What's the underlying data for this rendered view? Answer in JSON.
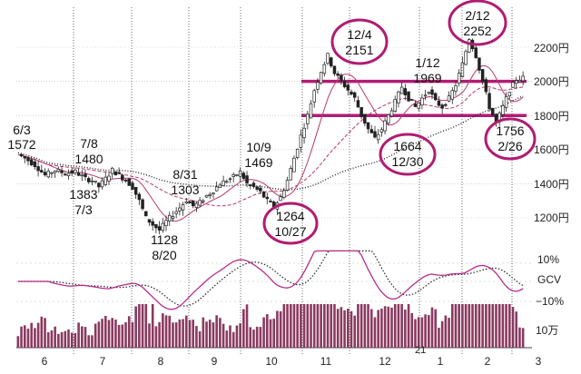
{
  "chart_data": {
    "type": "candlestick",
    "x_months": [
      "6",
      "7",
      "8",
      "9",
      "10",
      "11",
      "12",
      "1",
      "2",
      "3"
    ],
    "x_year_marker": "21",
    "price_axis": {
      "ticks": [
        "2200円",
        "2000円",
        "1800円",
        "1600円",
        "1400円",
        "1200円"
      ],
      "values": [
        2200,
        2000,
        1800,
        1600,
        1400,
        1200
      ],
      "ylim": [
        1100,
        2300
      ]
    },
    "gcv_axis": {
      "ticks": [
        "10%",
        "GCV",
        "−10%"
      ],
      "values": [
        10,
        0,
        -10
      ]
    },
    "volume_axis": {
      "ticks": [
        "10万"
      ]
    },
    "horizontal_lines": [
      2000,
      1800
    ],
    "annotations": [
      {
        "lines": [
          "6/3",
          "1572"
        ],
        "circled": false
      },
      {
        "lines": [
          "7/8",
          "1480"
        ],
        "circled": false
      },
      {
        "lines": [
          "1383",
          "7/3"
        ],
        "circled": false
      },
      {
        "lines": [
          "8/31",
          "1303"
        ],
        "circled": false
      },
      {
        "lines": [
          "1128",
          "8/20"
        ],
        "circled": false
      },
      {
        "lines": [
          "10/9",
          "1469"
        ],
        "circled": false
      },
      {
        "lines": [
          "1264",
          "10/27"
        ],
        "circled": true
      },
      {
        "lines": [
          "12/4",
          "2151"
        ],
        "circled": true
      },
      {
        "lines": [
          "1/12",
          "1969"
        ],
        "circled": false
      },
      {
        "lines": [
          "1664",
          "12/30"
        ],
        "circled": true
      },
      {
        "lines": [
          "2/12",
          "2252"
        ],
        "circled": true
      },
      {
        "lines": [
          "1756",
          "2/26"
        ],
        "circled": true
      }
    ],
    "price_keypoints": [
      [
        0,
        1572
      ],
      [
        2,
        1550
      ],
      [
        5,
        1510
      ],
      [
        8,
        1450
      ],
      [
        11,
        1480
      ],
      [
        14,
        1460
      ],
      [
        17,
        1470
      ],
      [
        20,
        1430
      ],
      [
        22,
        1420
      ],
      [
        24,
        1383
      ],
      [
        26,
        1430
      ],
      [
        28,
        1480
      ],
      [
        30,
        1450
      ],
      [
        32,
        1420
      ],
      [
        34,
        1380
      ],
      [
        36,
        1300
      ],
      [
        38,
        1200
      ],
      [
        40,
        1160
      ],
      [
        42,
        1128
      ],
      [
        44,
        1180
      ],
      [
        46,
        1220
      ],
      [
        48,
        1260
      ],
      [
        50,
        1303
      ],
      [
        52,
        1270
      ],
      [
        54,
        1290
      ],
      [
        56,
        1330
      ],
      [
        58,
        1360
      ],
      [
        60,
        1400
      ],
      [
        62,
        1420
      ],
      [
        64,
        1440
      ],
      [
        66,
        1469
      ],
      [
        68,
        1400
      ],
      [
        70,
        1380
      ],
      [
        72,
        1350
      ],
      [
        74,
        1300
      ],
      [
        76,
        1264
      ],
      [
        78,
        1320
      ],
      [
        80,
        1420
      ],
      [
        82,
        1550
      ],
      [
        84,
        1680
      ],
      [
        86,
        1800
      ],
      [
        88,
        1950
      ],
      [
        90,
        2060
      ],
      [
        92,
        2151
      ],
      [
        94,
        2050
      ],
      [
        96,
        2000
      ],
      [
        98,
        1950
      ],
      [
        100,
        1900
      ],
      [
        102,
        1800
      ],
      [
        104,
        1720
      ],
      [
        106,
        1664
      ],
      [
        108,
        1720
      ],
      [
        110,
        1800
      ],
      [
        112,
        1880
      ],
      [
        114,
        1969
      ],
      [
        116,
        1900
      ],
      [
        118,
        1850
      ],
      [
        120,
        1900
      ],
      [
        122,
        1950
      ],
      [
        124,
        1880
      ],
      [
        126,
        1850
      ],
      [
        128,
        1900
      ],
      [
        130,
        1980
      ],
      [
        132,
        2100
      ],
      [
        134,
        2252
      ],
      [
        136,
        2150
      ],
      [
        138,
        2000
      ],
      [
        140,
        1850
      ],
      [
        142,
        1756
      ],
      [
        144,
        1850
      ],
      [
        146,
        1950
      ],
      [
        148,
        2010
      ],
      [
        150,
        2020
      ]
    ]
  },
  "colors": {
    "candle": "#222222",
    "moving_average": "#b8386e",
    "support_line": "#b01c72",
    "annotation_circle": "#b01c72",
    "volume": "#8a3a60",
    "gcv_primary": "#b82d8a",
    "gcv_signal": "#222222",
    "grid": "#bbbbbb",
    "month_divider": "#444444"
  }
}
